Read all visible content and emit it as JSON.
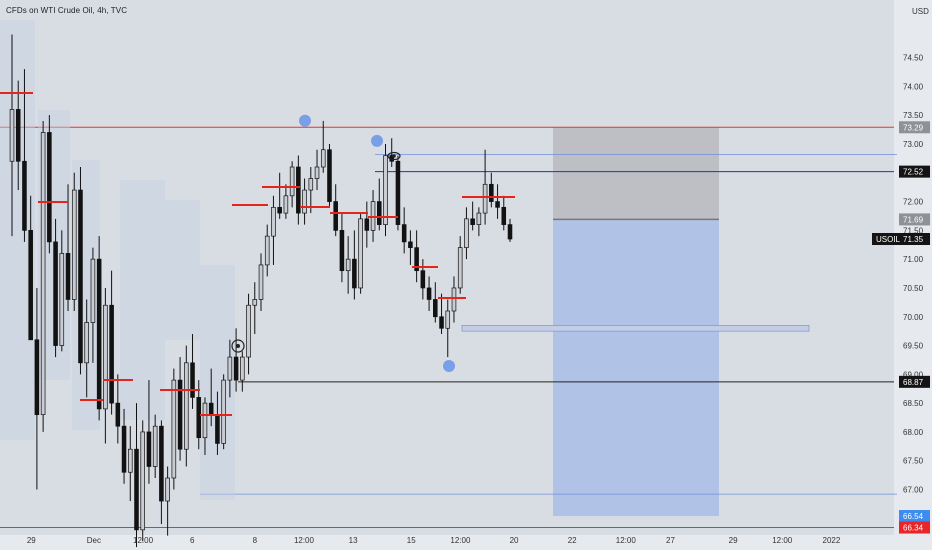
{
  "title": "CFDs on WTI Crude Oil, 4h, TVC",
  "colors": {
    "background": "#d8dce3",
    "axis_background": "#e6e9ee",
    "bull_candle": "#c9ccd2",
    "bear_candle": "#121212",
    "resistance_line": "#f0302c",
    "poc_line": "#e5241c",
    "target_zone": "#a9bde6",
    "stop_zone": "#b8bac0",
    "swing_marker": "#6f98e6",
    "price_tag_bg": "#141414",
    "tag_blue": "#3d8cf0",
    "tag_red": "#e8262a"
  },
  "chart_data": {
    "type": "candlestick",
    "symbol": "USOIL",
    "currency": "USD",
    "y_range": [
      65.95,
      75.5
    ],
    "y_ticks": [
      "74.50",
      "74.00",
      "73.50",
      "73.00",
      "72.50",
      "72.00",
      "71.50",
      "71.00",
      "70.50",
      "70.00",
      "69.50",
      "69.00",
      "68.50",
      "68.00",
      "67.50",
      "67.00",
      "66.50",
      "66.00"
    ],
    "x_ticks": [
      "29",
      "Dec",
      "12:00",
      "6",
      "8",
      "12:00",
      "13",
      "15",
      "12:00",
      "20",
      "22",
      "12:00",
      "27",
      "29",
      "12:00",
      "2022"
    ],
    "candles": [
      [
        72.7,
        74.9,
        71.4,
        73.6
      ],
      [
        73.6,
        74.1,
        72.2,
        72.7
      ],
      [
        72.7,
        74.3,
        71.3,
        71.5
      ],
      [
        71.5,
        72.1,
        69.6,
        69.6
      ],
      [
        69.6,
        70.5,
        67.0,
        68.3
      ],
      [
        68.3,
        73.4,
        68.0,
        73.2
      ],
      [
        73.2,
        73.5,
        71.1,
        71.3
      ],
      [
        71.3,
        71.7,
        69.3,
        69.5
      ],
      [
        69.5,
        71.5,
        69.4,
        71.1
      ],
      [
        71.1,
        72.3,
        70.1,
        70.3
      ],
      [
        70.3,
        72.5,
        70.1,
        72.2
      ],
      [
        72.2,
        72.6,
        69.0,
        69.2
      ],
      [
        69.2,
        70.3,
        68.6,
        69.9
      ],
      [
        69.9,
        71.2,
        69.2,
        71.0
      ],
      [
        71.0,
        71.4,
        68.2,
        68.4
      ],
      [
        68.4,
        70.5,
        67.8,
        70.2
      ],
      [
        70.2,
        70.8,
        68.3,
        68.5
      ],
      [
        68.5,
        69.0,
        67.8,
        68.1
      ],
      [
        68.1,
        68.4,
        67.1,
        67.3
      ],
      [
        67.3,
        68.1,
        66.8,
        67.7
      ],
      [
        67.7,
        68.5,
        66.0,
        66.3
      ],
      [
        66.3,
        68.2,
        66.1,
        68.0
      ],
      [
        68.0,
        68.9,
        67.1,
        67.4
      ],
      [
        67.4,
        68.3,
        67.2,
        68.1
      ],
      [
        68.1,
        68.2,
        66.4,
        66.8
      ],
      [
        66.8,
        67.4,
        66.2,
        67.2
      ],
      [
        67.2,
        69.1,
        67.0,
        68.9
      ],
      [
        68.9,
        69.3,
        67.5,
        67.7
      ],
      [
        67.7,
        69.5,
        67.4,
        69.2
      ],
      [
        69.2,
        69.7,
        68.4,
        68.6
      ],
      [
        68.6,
        68.9,
        67.7,
        67.9
      ],
      [
        67.9,
        68.6,
        67.6,
        68.5
      ],
      [
        68.5,
        69.1,
        68.1,
        68.3
      ],
      [
        68.3,
        68.7,
        67.6,
        67.8
      ],
      [
        67.8,
        69.0,
        67.7,
        68.9
      ],
      [
        68.9,
        69.6,
        68.6,
        69.3
      ],
      [
        69.3,
        69.8,
        68.7,
        68.9
      ],
      [
        68.9,
        69.4,
        68.7,
        69.3
      ],
      [
        69.3,
        70.4,
        69.0,
        70.2
      ],
      [
        70.2,
        70.6,
        69.7,
        70.3
      ],
      [
        70.3,
        71.1,
        70.1,
        70.9
      ],
      [
        70.9,
        71.6,
        70.7,
        71.4
      ],
      [
        71.4,
        72.1,
        70.9,
        71.9
      ],
      [
        71.9,
        72.5,
        71.7,
        71.8
      ],
      [
        71.8,
        72.3,
        71.7,
        72.1
      ],
      [
        72.1,
        72.7,
        71.9,
        72.6
      ],
      [
        72.6,
        72.8,
        71.6,
        71.8
      ],
      [
        71.8,
        72.4,
        71.6,
        72.2
      ],
      [
        72.2,
        72.6,
        71.8,
        72.4
      ],
      [
        72.4,
        72.9,
        72.2,
        72.6
      ],
      [
        72.6,
        73.4,
        72.5,
        72.9
      ],
      [
        72.9,
        73.0,
        71.9,
        72.0
      ],
      [
        72.0,
        72.3,
        71.4,
        71.5
      ],
      [
        71.5,
        71.8,
        70.6,
        70.8
      ],
      [
        70.8,
        71.4,
        70.4,
        71.0
      ],
      [
        71.0,
        71.5,
        70.3,
        70.5
      ],
      [
        70.5,
        71.8,
        70.4,
        71.7
      ],
      [
        71.7,
        72.0,
        71.2,
        71.5
      ],
      [
        71.5,
        72.2,
        71.3,
        72.0
      ],
      [
        72.0,
        72.4,
        71.5,
        71.6
      ],
      [
        71.6,
        73.0,
        71.4,
        72.8
      ],
      [
        72.8,
        73.1,
        72.6,
        72.7
      ],
      [
        72.7,
        72.8,
        71.5,
        71.6
      ],
      [
        71.6,
        71.9,
        71.1,
        71.3
      ],
      [
        71.3,
        71.5,
        70.9,
        71.2
      ],
      [
        71.2,
        71.5,
        70.6,
        70.8
      ],
      [
        70.8,
        71.0,
        70.3,
        70.5
      ],
      [
        70.5,
        70.7,
        70.1,
        70.3
      ],
      [
        70.3,
        70.6,
        69.9,
        70.0
      ],
      [
        70.0,
        70.4,
        69.7,
        69.8
      ],
      [
        69.8,
        70.3,
        69.3,
        70.1
      ],
      [
        70.1,
        70.7,
        69.9,
        70.5
      ],
      [
        70.5,
        71.4,
        70.4,
        71.2
      ],
      [
        71.2,
        71.9,
        71.0,
        71.7
      ],
      [
        71.7,
        72.0,
        71.5,
        71.6
      ],
      [
        71.6,
        71.9,
        71.4,
        71.8
      ],
      [
        71.8,
        72.9,
        71.6,
        72.3
      ],
      [
        72.3,
        72.5,
        71.9,
        72.0
      ],
      [
        72.0,
        72.3,
        71.7,
        71.9
      ],
      [
        71.9,
        72.1,
        71.5,
        71.6
      ],
      [
        71.6,
        71.7,
        71.3,
        71.35
      ]
    ],
    "last_price": "71.35",
    "resistance_levels": [
      73.29,
      66.34
    ],
    "horizontal_lines": [
      72.52,
      68.87,
      72.82,
      66.92
    ],
    "price_tags": [
      {
        "label": "73.29",
        "kind": "grey"
      },
      {
        "label": "72.52",
        "kind": "dark"
      },
      {
        "label": "71.69",
        "kind": "grey"
      },
      {
        "label": "USOIL 71.35",
        "kind": "dark"
      },
      {
        "label": "68.87",
        "kind": "dark"
      },
      {
        "label": "66.54",
        "kind": "blue"
      },
      {
        "label": "66.34",
        "kind": "red"
      }
    ],
    "short_position": {
      "entry": 71.69,
      "stop": 73.29,
      "target": 66.54
    },
    "demand_zone": [
      69.75,
      69.85
    ],
    "swing_points": [
      73.3,
      72.95,
      69.25
    ]
  }
}
